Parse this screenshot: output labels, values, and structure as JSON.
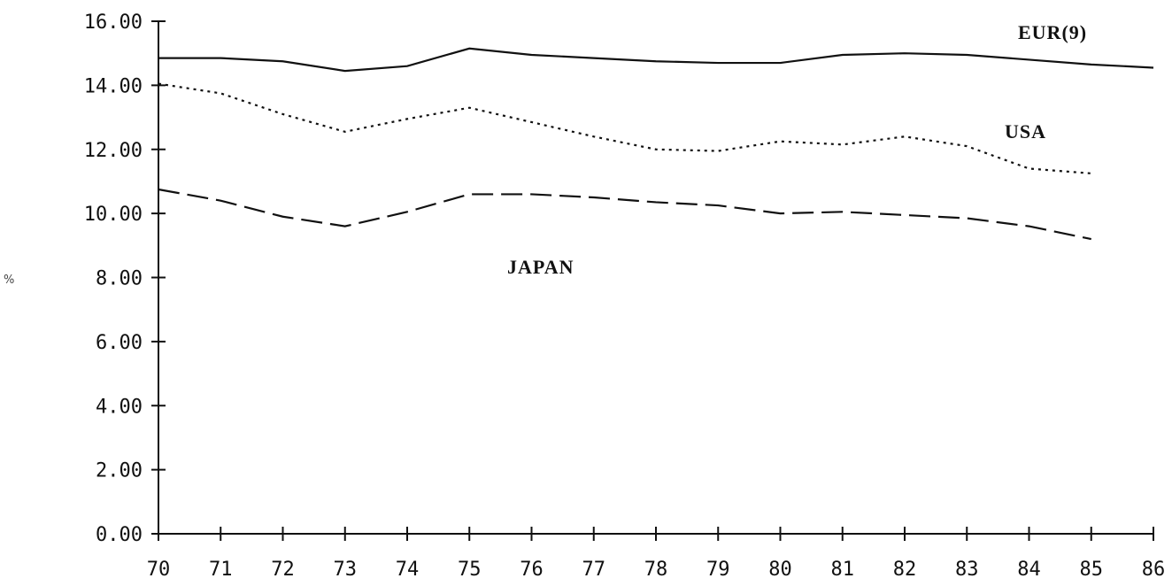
{
  "chart_data": {
    "type": "line",
    "title": "",
    "xlabel": "",
    "ylabel": "%",
    "x": [
      70,
      71,
      72,
      73,
      74,
      75,
      76,
      77,
      78,
      79,
      80,
      81,
      82,
      83,
      84,
      85
    ],
    "x_ticks": [
      "70",
      "71",
      "72",
      "73",
      "74",
      "75",
      "76",
      "77",
      "78",
      "79",
      "80",
      "81",
      "82",
      "83",
      "84",
      "85",
      "86"
    ],
    "y_ticks": [
      "0.00",
      "2.00",
      "4.00",
      "6.00",
      "8.00",
      "10.00",
      "12.00",
      "14.00",
      "16.00"
    ],
    "xlim": [
      70,
      86
    ],
    "ylim": [
      0,
      16
    ],
    "grid": false,
    "legend": "inline labels",
    "series": [
      {
        "name": "EUR(9)",
        "style": "solid",
        "x": [
          70,
          71,
          72,
          73,
          74,
          75,
          76,
          77,
          78,
          79,
          80,
          81,
          82,
          83,
          84,
          85,
          86
        ],
        "values": [
          14.85,
          14.85,
          14.75,
          14.45,
          14.6,
          15.15,
          14.95,
          14.85,
          14.75,
          14.7,
          14.7,
          14.95,
          15.0,
          14.95,
          14.8,
          14.65,
          14.55
        ]
      },
      {
        "name": "USA",
        "style": "dotted",
        "x": [
          70,
          71,
          72,
          73,
          74,
          75,
          76,
          77,
          78,
          79,
          80,
          81,
          82,
          83,
          84,
          85
        ],
        "values": [
          14.05,
          13.75,
          13.1,
          12.55,
          12.95,
          13.3,
          12.85,
          12.4,
          12.0,
          11.95,
          12.25,
          12.15,
          12.4,
          12.1,
          11.4,
          11.25
        ]
      },
      {
        "name": "JAPAN",
        "style": "dashed",
        "x": [
          70,
          71,
          72,
          73,
          74,
          75,
          76,
          77,
          78,
          79,
          80,
          81,
          82,
          83,
          84,
          85
        ],
        "values": [
          10.75,
          10.4,
          9.9,
          9.6,
          10.05,
          10.6,
          10.6,
          10.5,
          10.35,
          10.25,
          10.0,
          10.05,
          9.95,
          9.85,
          9.6,
          9.2
        ]
      }
    ],
    "colors": {
      "line": "#111111",
      "background": "#ffffff"
    }
  }
}
